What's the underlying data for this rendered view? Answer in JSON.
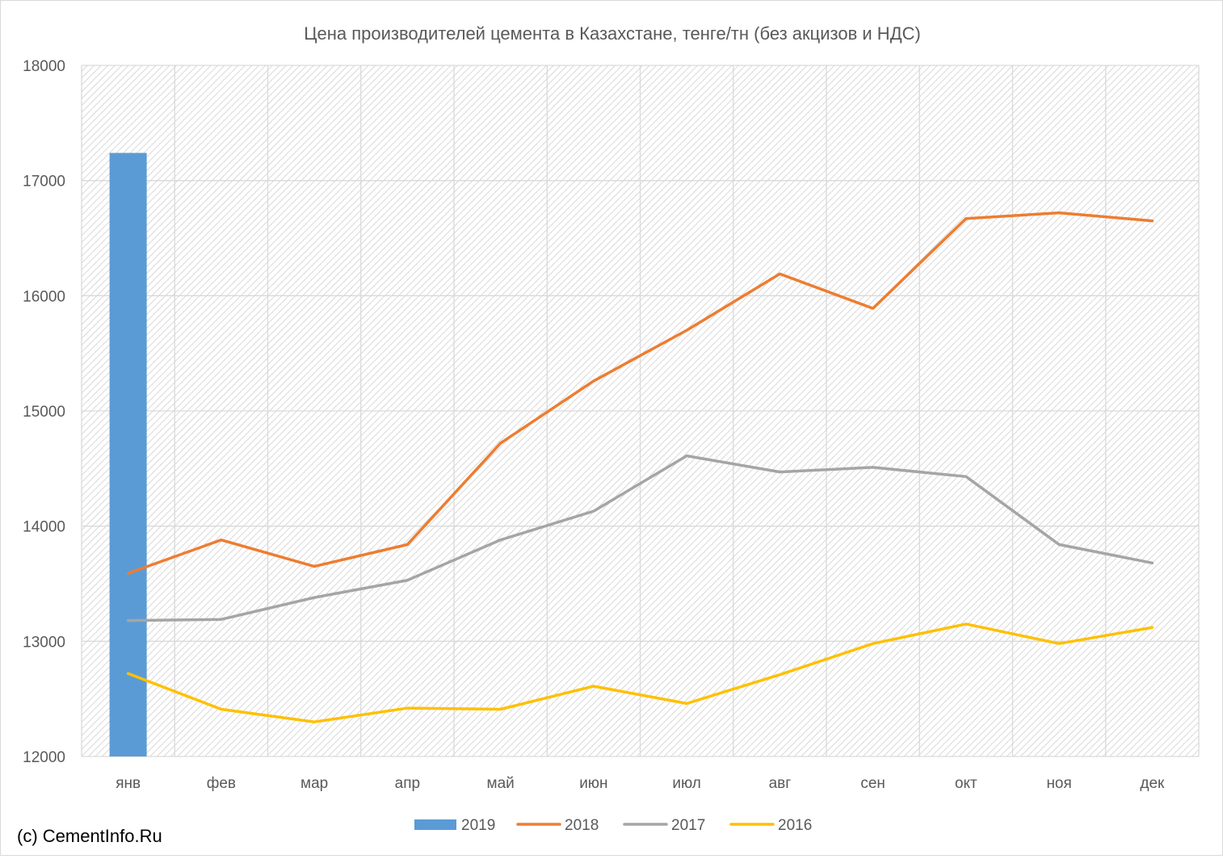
{
  "chart_data": {
    "type": "bar+line",
    "title": "Цена производителей цемента в Казахстане, тенге/тн (без акцизов и НДС)",
    "categories": [
      "янв",
      "фев",
      "мар",
      "апр",
      "май",
      "июн",
      "июл",
      "авг",
      "сен",
      "окт",
      "ноя",
      "дек"
    ],
    "ylim": [
      12000,
      18000
    ],
    "yticks": [
      "12000",
      "13000",
      "14000",
      "15000",
      "16000",
      "17000",
      "18000"
    ],
    "grid": true,
    "legend_position": "bottom",
    "series": [
      {
        "name": "2019",
        "type": "bar",
        "color": "#5b9bd5",
        "values": [
          17240,
          null,
          null,
          null,
          null,
          null,
          null,
          null,
          null,
          null,
          null,
          null
        ]
      },
      {
        "name": "2018",
        "type": "line",
        "color": "#ed7d31",
        "values": [
          13590,
          13880,
          13650,
          13840,
          14720,
          15260,
          15700,
          16190,
          15890,
          16670,
          16720,
          16650
        ]
      },
      {
        "name": "2017",
        "type": "line",
        "color": "#a5a5a5",
        "values": [
          13180,
          13190,
          13380,
          13530,
          13880,
          14130,
          14610,
          14470,
          14510,
          14430,
          13840,
          13680
        ]
      },
      {
        "name": "2016",
        "type": "line",
        "color": "#ffc000",
        "values": [
          12720,
          12410,
          12300,
          12420,
          12410,
          12610,
          12460,
          12710,
          12980,
          13150,
          12980,
          13120
        ]
      }
    ]
  },
  "watermark": "(c) CementInfo.Ru"
}
